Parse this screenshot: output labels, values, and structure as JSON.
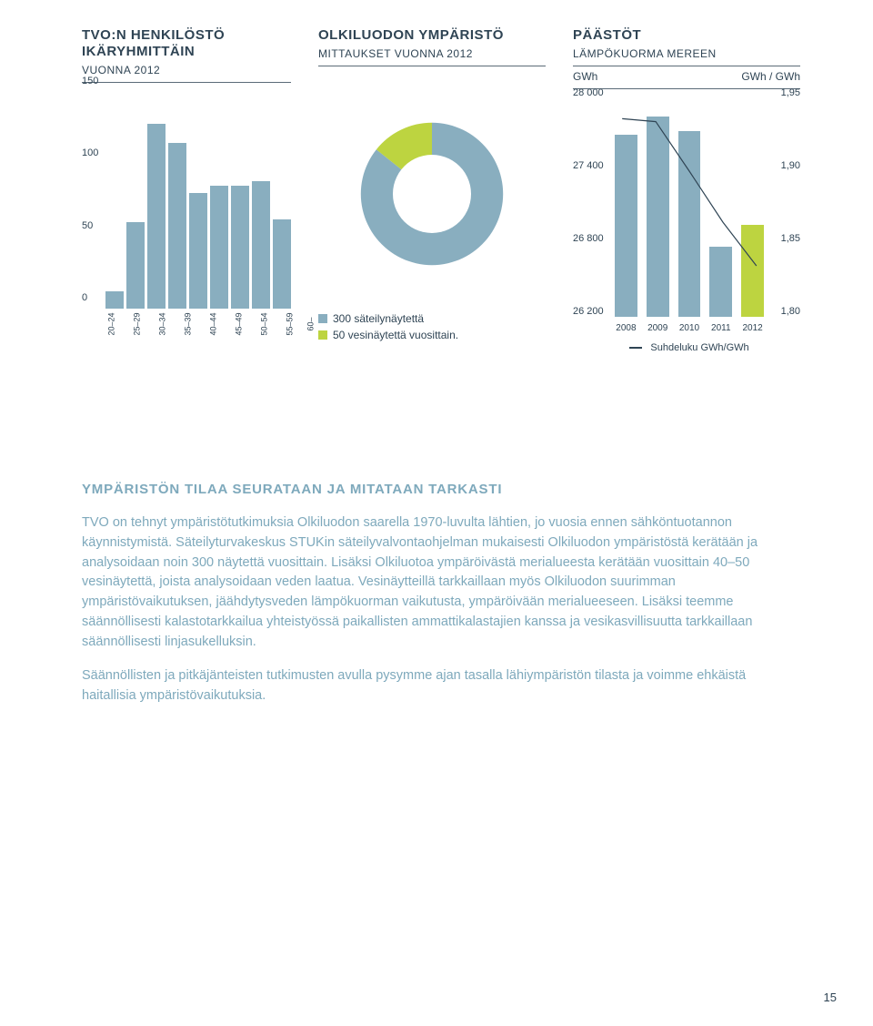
{
  "chart1": {
    "title": "TVO:N HENKILÖSTÖ\nIKÄRYHMITTÄIN",
    "sub": "VUONNA 2012",
    "y_ticks": [
      0,
      50,
      100,
      150
    ],
    "ymax": 150,
    "categories": [
      "20–24",
      "25–29",
      "30–34",
      "35–39",
      "40–44",
      "45–49",
      "50–54",
      "55–59",
      "60–"
    ],
    "values": [
      12,
      60,
      128,
      115,
      80,
      85,
      85,
      88,
      62
    ],
    "bar_color": "#89aebf",
    "axis_color": "#2f4454",
    "fontsize_title": 15,
    "fontsize_tick": 11
  },
  "chart2": {
    "title": "OLKILUODON YMPÄRISTÖ",
    "sub": "MITTAUKSET VUONNA 2012",
    "slices": [
      {
        "label": "300 säteilynäytettä",
        "value": 300,
        "color": "#89aebf"
      },
      {
        "label": "50 vesinäytettä vuosittain.",
        "value": 50,
        "color": "#bdd440"
      }
    ],
    "inner_ratio": 0.55,
    "background_color": "#ffffff"
  },
  "chart3": {
    "title": "PÄÄSTÖT",
    "sub": "LÄMPÖKUORMA MEREEN",
    "left_unit": "GWh",
    "right_unit": "GWh / GWh",
    "left_ticks": [
      26200,
      26800,
      27400,
      28000
    ],
    "right_ticks": [
      "1,80",
      "1,85",
      "1,90",
      "1,95"
    ],
    "left_min": 26200,
    "left_max": 28000,
    "right_min": 1.8,
    "right_max": 1.95,
    "categories": [
      "2008",
      "2009",
      "2010",
      "2011",
      "2012"
    ],
    "bar_values": [
      27700,
      27850,
      27730,
      26780,
      26960
    ],
    "bar_colors": [
      "#89aebf",
      "#89aebf",
      "#89aebf",
      "#89aebf",
      "#bdd440"
    ],
    "line_values": [
      1.936,
      1.934,
      1.9,
      1.865,
      1.835
    ],
    "line_color": "#2f4454",
    "line_legend": "Suhdeluku GWh/GWh"
  },
  "text": {
    "heading": "YMPÄRISTÖN TILAA SEURATAAN JA MITATAAN TARKASTI",
    "p1": "TVO on tehnyt ympäristötutkimuksia Olkiluodon saarella 1970-luvulta lähtien, jo vuosia ennen sähköntuotannon käynnistymistä. Säteilyturvakeskus STUKin säteilyvalvontaohjelman mukaisesti Olkiluodon ympäristöstä kerätään ja analysoidaan noin 300 näytettä vuosittain. Lisäksi Olkiluotoa ympäröivästä merialueesta kerätään vuosittain 40–50 vesinäytettä, joista analysoidaan veden laatua. Vesinäytteillä tarkkaillaan myös Olkiluodon suurimman ympäristövaikutuksen, jäähdytysveden lämpökuorman vaikutusta, ympäröivään merialueeseen. Lisäksi teemme säännöllisesti kalastotarkkailua yhteistyössä paikallisten ammattikalastajien kanssa ja vesikasvillisuutta tarkkaillaan säännöllisesti linjasukelluksin.",
    "p2": "Säännöllisten ja pitkäjänteisten tutkimusten avulla pysymme ajan tasalla lähiympäristön tilasta ja voimme ehkäistä haitallisia ympäristövaikutuksia."
  },
  "page_number": "15",
  "colors": {
    "text_dark": "#2f4454",
    "text_light": "#7ea9bc",
    "bar": "#89aebf",
    "accent": "#bdd440",
    "background": "#ffffff"
  }
}
